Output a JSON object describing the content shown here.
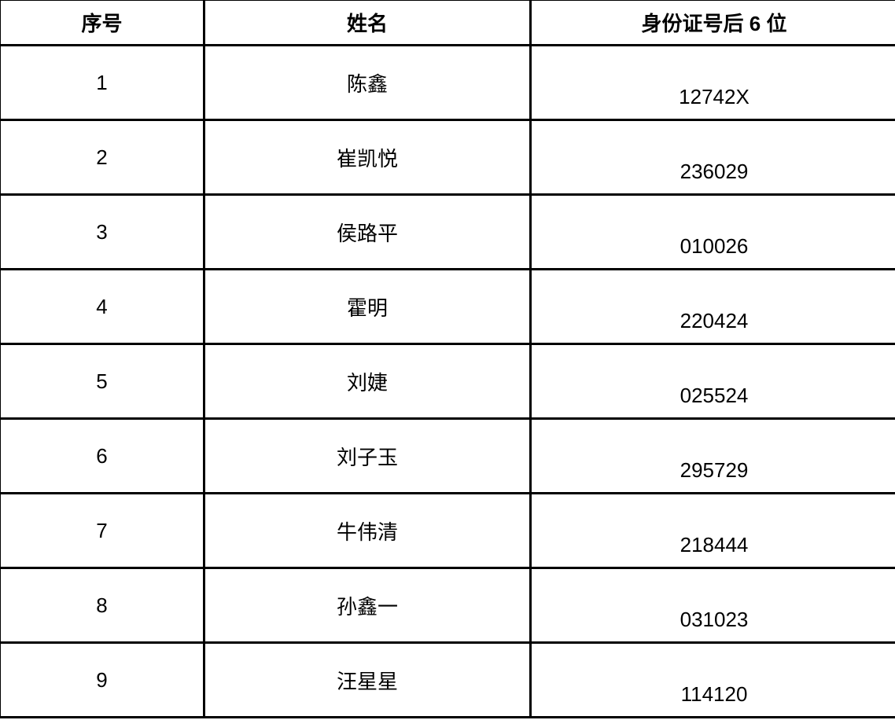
{
  "table": {
    "headers": [
      "序号",
      "姓名",
      "身份证号后 6 位"
    ],
    "rows": [
      {
        "no": "1",
        "name": "陈鑫",
        "id": "12742X"
      },
      {
        "no": "2",
        "name": "崔凯悦",
        "id": "236029"
      },
      {
        "no": "3",
        "name": "侯路平",
        "id": "010026"
      },
      {
        "no": "4",
        "name": "霍明",
        "id": "220424"
      },
      {
        "no": "5",
        "name": "刘婕",
        "id": "025524"
      },
      {
        "no": "6",
        "name": "刘子玉",
        "id": "295729"
      },
      {
        "no": "7",
        "name": "牛伟清",
        "id": "218444"
      },
      {
        "no": "8",
        "name": "孙鑫一",
        "id": "031023"
      },
      {
        "no": "9",
        "name": "汪星星",
        "id": "114120"
      }
    ]
  }
}
